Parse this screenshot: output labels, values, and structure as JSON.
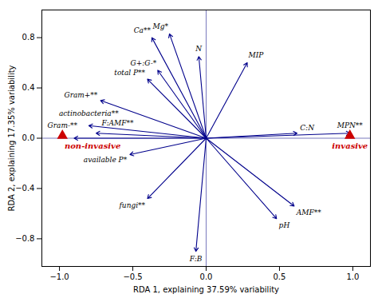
{
  "chart_data": {
    "type": "biplot",
    "xlabel": "RDA 1, explaining 37.59% variability",
    "ylabel": "RDA 2, explaining 17.35% variability",
    "xlim": [
      -1.12,
      1.12
    ],
    "ylim": [
      -1.02,
      1.02
    ],
    "xticks": [
      {
        "value": -1.0,
        "label": "−1.0"
      },
      {
        "value": -0.5,
        "label": "−0.5"
      },
      {
        "value": 0.0,
        "label": "0.0"
      },
      {
        "value": 0.5,
        "label": "0.5"
      },
      {
        "value": 1.0,
        "label": "1.0"
      }
    ],
    "yticks": [
      {
        "value": -0.8,
        "label": "−0.8"
      },
      {
        "value": -0.4,
        "label": "−0.4"
      },
      {
        "value": 0.0,
        "label": "0.0"
      },
      {
        "value": 0.4,
        "label": "0.4"
      },
      {
        "value": 0.8,
        "label": "0.8"
      }
    ],
    "grid": false,
    "color": "#00008B",
    "vectors": [
      {
        "name": "Ca**",
        "x": -0.37,
        "y": 0.8
      },
      {
        "name": "Mg*",
        "x": -0.25,
        "y": 0.83
      },
      {
        "name": "N",
        "x": -0.05,
        "y": 0.65
      },
      {
        "name": "G+:G-*",
        "x": -0.33,
        "y": 0.54
      },
      {
        "name": "total P**",
        "x": -0.4,
        "y": 0.47
      },
      {
        "name": "Gram+**",
        "x": -0.72,
        "y": 0.3
      },
      {
        "name": "actinobacteria**",
        "x": -0.8,
        "y": 0.1
      },
      {
        "name": "F:AMF**",
        "x": -0.75,
        "y": 0.04
      },
      {
        "name": "Gram-**",
        "x": -0.9,
        "y": 0.0
      },
      {
        "name": "available P*",
        "x": -0.52,
        "y": -0.13
      },
      {
        "name": "fungi**",
        "x": -0.4,
        "y": -0.48
      },
      {
        "name": "F:B",
        "x": -0.07,
        "y": -0.9
      },
      {
        "name": "MIP",
        "x": 0.28,
        "y": 0.6
      },
      {
        "name": "C:N",
        "x": 0.62,
        "y": 0.04
      },
      {
        "name": "MPN**",
        "x": 0.98,
        "y": 0.04
      },
      {
        "name": "AMF**",
        "x": 0.6,
        "y": -0.54
      },
      {
        "name": "pH",
        "x": 0.48,
        "y": -0.64
      }
    ],
    "points": [
      {
        "name": "non-invasive",
        "x": -0.98,
        "y": 0.02,
        "color": "#CC0000",
        "marker": "triangle"
      },
      {
        "name": "invasive",
        "x": 0.98,
        "y": 0.02,
        "color": "#CC0000",
        "marker": "triangle"
      }
    ]
  }
}
